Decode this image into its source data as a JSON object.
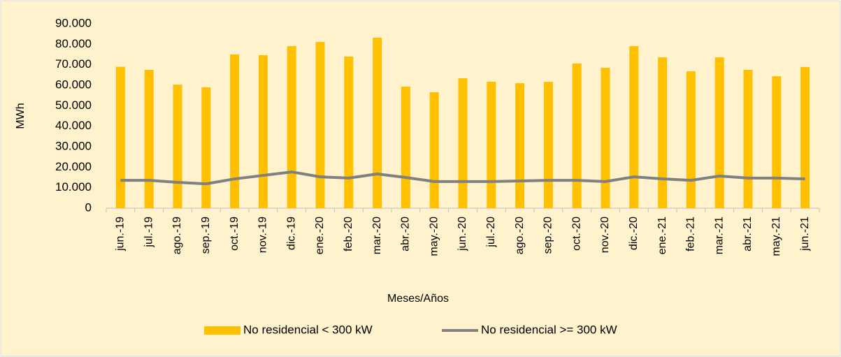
{
  "chart_data": {
    "type": "bar-line",
    "categories": [
      "jun.-19",
      "jul.-19",
      "ago.-19",
      "sep.-19",
      "oct.-19",
      "nov.-19",
      "dic.-19",
      "ene.-20",
      "feb.-20",
      "mar.-20",
      "abr.-20",
      "may.-20",
      "jun.-20",
      "jul.-20",
      "ago.-20",
      "sep.-20",
      "oct.-20",
      "nov.-20",
      "dic.-20",
      "ene.-21",
      "feb.-21",
      "mar.-21",
      "abr.-21",
      "may.-21",
      "jun.-21"
    ],
    "series": [
      {
        "name": "No residencial < 300 kW",
        "type": "bar",
        "color": "#ffc000",
        "values": [
          69000,
          67500,
          60300,
          59000,
          75000,
          74700,
          79100,
          81100,
          74000,
          83200,
          59300,
          56600,
          63400,
          61700,
          61000,
          61700,
          70600,
          68500,
          79100,
          73600,
          66800,
          73600,
          67500,
          64400,
          68900
        ]
      },
      {
        "name": "No residencial >= 300 kW",
        "type": "line",
        "color": "#808080",
        "values": [
          13600,
          13600,
          12600,
          11900,
          14300,
          16000,
          17700,
          15300,
          14700,
          16700,
          15000,
          13000,
          13000,
          13000,
          13300,
          13600,
          13600,
          13000,
          15300,
          14300,
          13600,
          15700,
          14700,
          14700,
          14300
        ]
      }
    ],
    "ylabel": "MWh",
    "xlabel": "Meses/Años",
    "ylim": [
      0,
      90000
    ],
    "yticks": [
      0,
      {
        "value": 10000,
        "label": "10.000"
      },
      {
        "value": 20000,
        "label": "20.000"
      },
      {
        "value": 30000,
        "label": "30.000"
      },
      {
        "value": 40000,
        "label": "40.000"
      },
      {
        "value": 50000,
        "label": "50.000"
      },
      {
        "value": 60000,
        "label": "60.000"
      },
      {
        "value": 70000,
        "label": "70.000"
      },
      {
        "value": 80000,
        "label": "80.000"
      },
      {
        "value": 90000,
        "label": "90.000"
      }
    ],
    "legend": "bottom"
  }
}
